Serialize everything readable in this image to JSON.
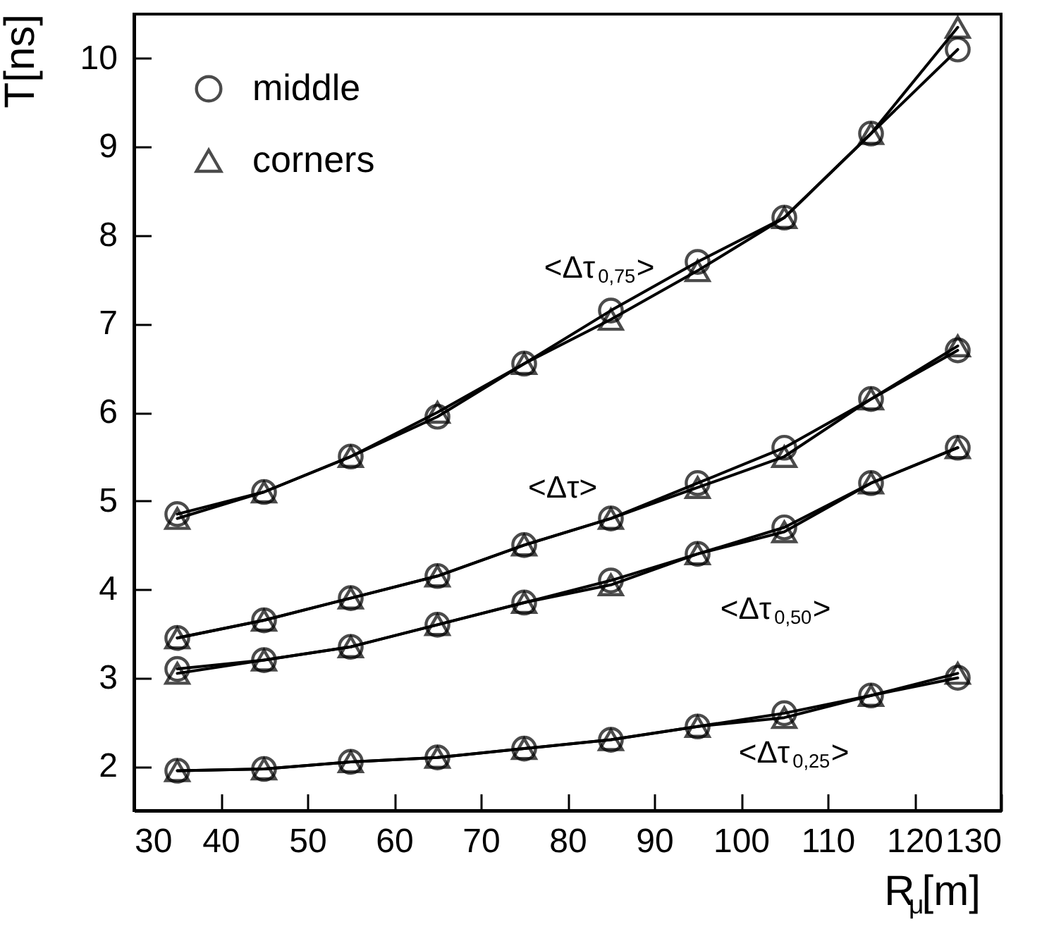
{
  "chart_data": {
    "type": "line",
    "xlabel": "R$_{μ}$[m]",
    "ylabel": "T[ns]",
    "x": [
      35,
      45,
      55,
      65,
      75,
      85,
      95,
      105,
      115,
      125
    ],
    "xlim": [
      30,
      130
    ],
    "xticks": [
      30,
      40,
      50,
      60,
      70,
      80,
      90,
      100,
      110,
      120,
      130
    ],
    "ylim": [
      1.5,
      10.5
    ],
    "yticks": [
      2,
      3,
      4,
      5,
      6,
      7,
      8,
      9,
      10
    ],
    "legend": "top left",
    "grid": false,
    "series": [
      {
        "name": "middle",
        "marker": "circle",
        "color": "#000000",
        "values": [
          4.85,
          5.1,
          5.5,
          5.95,
          6.55,
          7.15,
          7.7,
          8.2,
          9.15,
          10.1
        ]
      },
      {
        "name": "corners",
        "marker": "triangle",
        "color": "#000000",
        "values": [
          4.8,
          5.1,
          5.5,
          6.0,
          6.55,
          7.05,
          7.6,
          8.2,
          9.15,
          10.35
        ]
      },
      {
        "marker": "circle",
        "color": "#000000",
        "values": [
          3.45,
          3.65,
          3.9,
          4.15,
          4.5,
          4.8,
          5.2,
          5.6,
          6.15,
          6.7
        ]
      },
      {
        "marker": "triangle",
        "color": "#000000",
        "values": [
          3.45,
          3.65,
          3.9,
          4.15,
          4.5,
          4.8,
          5.15,
          5.5,
          6.15,
          6.75
        ]
      },
      {
        "marker": "circle",
        "color": "#000000",
        "values": [
          3.1,
          3.2,
          3.35,
          3.6,
          3.85,
          4.1,
          4.4,
          4.7,
          5.2,
          5.6
        ]
      },
      {
        "marker": "triangle",
        "color": "#000000",
        "values": [
          3.05,
          3.2,
          3.35,
          3.6,
          3.85,
          4.05,
          4.4,
          4.65,
          5.2,
          5.6
        ]
      },
      {
        "marker": "circle",
        "color": "#000000",
        "values": [
          1.95,
          1.97,
          2.05,
          2.1,
          2.2,
          2.3,
          2.45,
          2.6,
          2.8,
          3.0
        ]
      },
      {
        "marker": "triangle",
        "color": "#000000",
        "values": [
          1.95,
          1.97,
          2.05,
          2.1,
          2.2,
          2.3,
          2.45,
          2.55,
          2.8,
          3.05
        ]
      }
    ],
    "annotations": [
      "<Δτ$_{0,75}$>",
      "<Δτ>",
      "<Δτ$_{0,50}$>",
      "<Δτ$_{0,25}$>"
    ]
  }
}
